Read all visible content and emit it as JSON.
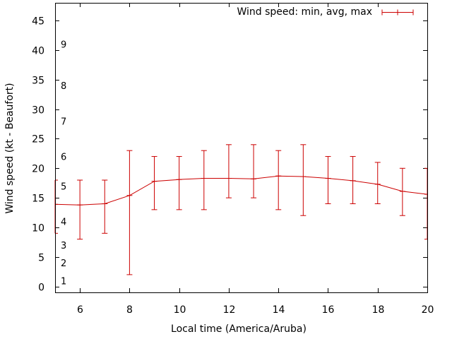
{
  "chart_data": {
    "type": "line",
    "title": "",
    "xlabel": "Local time (America/Aruba)",
    "ylabel": "Wind speed (kt - Beaufort)",
    "xlim": [
      5,
      20
    ],
    "ylim": [
      -1,
      48
    ],
    "x_ticks": [
      6,
      8,
      10,
      12,
      14,
      16,
      18,
      20
    ],
    "y_ticks": [
      0,
      5,
      10,
      15,
      20,
      25,
      30,
      35,
      40,
      45
    ],
    "grid": false,
    "legend_position": "top-right",
    "series": [
      {
        "name": "Wind speed: min, avg, max",
        "color": "#cc0000",
        "x": [
          5,
          6,
          7,
          8,
          9,
          10,
          11,
          12,
          13,
          14,
          15,
          16,
          17,
          18,
          19,
          20
        ],
        "avg": [
          13.9,
          13.8,
          14.0,
          15.4,
          17.8,
          18.1,
          18.3,
          18.3,
          18.2,
          18.7,
          18.6,
          18.3,
          17.9,
          17.3,
          16.1,
          15.6
        ],
        "min": [
          9,
          8,
          9,
          2,
          13,
          13,
          13,
          15,
          15,
          13,
          12,
          14,
          14,
          14,
          12,
          8
        ],
        "max": [
          18,
          18,
          18,
          23,
          22,
          22,
          23,
          24,
          24,
          23,
          24,
          22,
          22,
          21,
          20,
          20
        ]
      }
    ],
    "beaufort_scale": [
      {
        "label": "1",
        "value": 1
      },
      {
        "label": "2",
        "value": 4
      },
      {
        "label": "3",
        "value": 7
      },
      {
        "label": "4",
        "value": 11
      },
      {
        "label": "5",
        "value": 17
      },
      {
        "label": "6",
        "value": 22
      },
      {
        "label": "7",
        "value": 28
      },
      {
        "label": "8",
        "value": 34
      },
      {
        "label": "9",
        "value": 41
      }
    ]
  }
}
